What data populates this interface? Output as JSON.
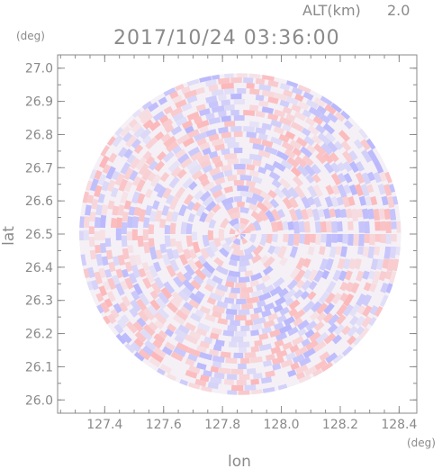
{
  "chart_data": {
    "type": "heatmap",
    "title": "2017/10/24 03:36:00",
    "altitude_label": "ALT(km)",
    "altitude_value": "2.0",
    "xlabel": "lon",
    "ylabel": "lat",
    "x_unit": "(deg)",
    "y_unit": "(deg)",
    "xlim": [
      127.24,
      128.46
    ],
    "ylim": [
      25.96,
      27.04
    ],
    "x_ticks": [
      127.4,
      127.6,
      127.8,
      128.0,
      128.2,
      128.4
    ],
    "x_tick_labels": [
      "127.4",
      "127.6",
      "127.8",
      "128.0",
      "128.2",
      "128.4"
    ],
    "y_ticks": [
      26.0,
      26.1,
      26.2,
      26.3,
      26.4,
      26.5,
      26.6,
      26.7,
      26.8,
      26.9,
      27.0
    ],
    "y_tick_labels": [
      "26.0",
      "26.1",
      "26.2",
      "26.3",
      "26.4",
      "26.5",
      "26.6",
      "26.7",
      "26.8",
      "26.9",
      "27.0"
    ],
    "center": {
      "lon": 127.86,
      "lat": 26.5
    },
    "radius_deg_lat": 0.485,
    "colors": {
      "positive": "#ff9e9e",
      "negative": "#9e9eff",
      "axis": "#8a8a8a"
    }
  }
}
